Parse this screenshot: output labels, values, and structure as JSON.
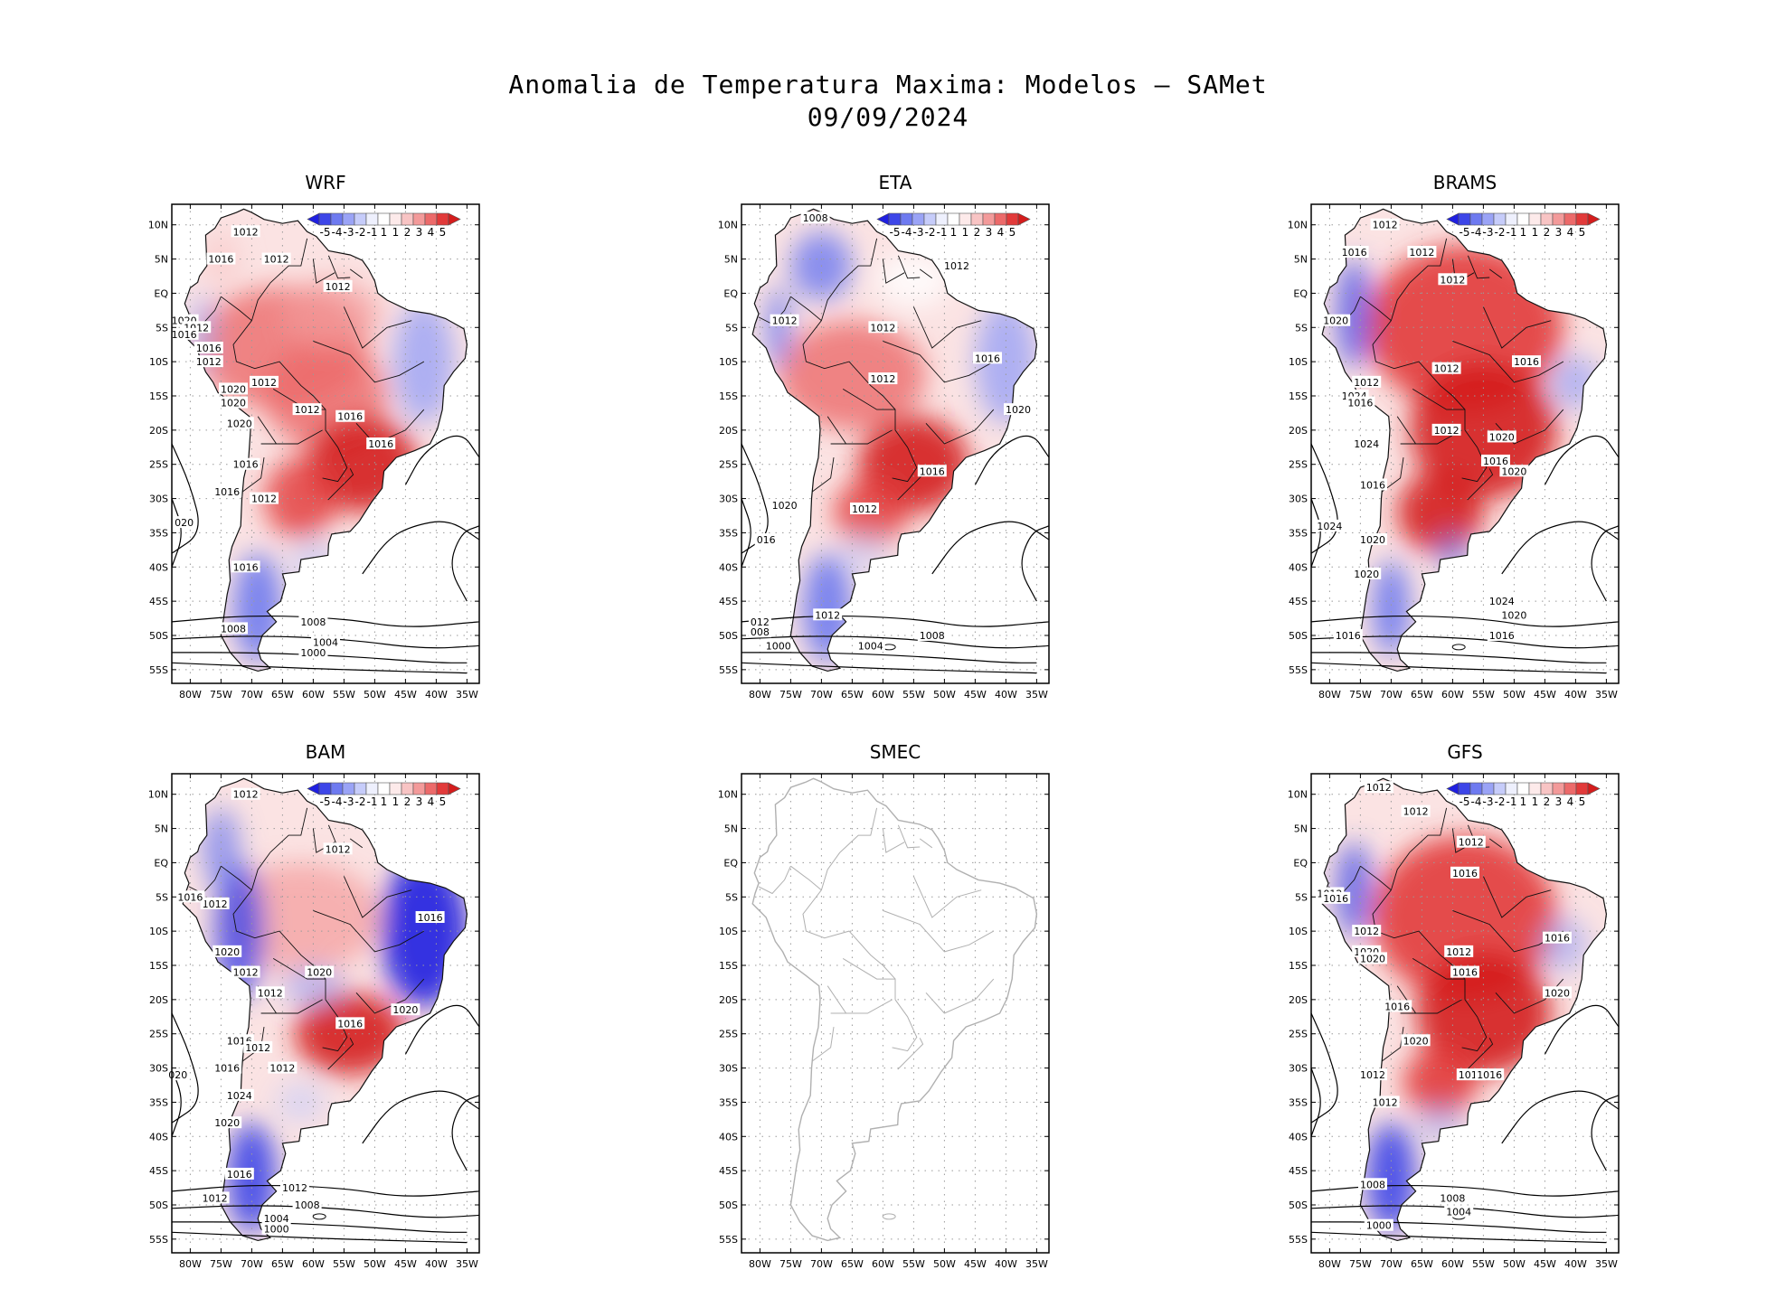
{
  "figure": {
    "title_line1": "Anomalia de Temperatura Maxima: Modelos — SAMet",
    "title_line2": "09/09/2024"
  },
  "axes": {
    "lat_labels": [
      "10N",
      "5N",
      "EQ",
      "5S",
      "10S",
      "15S",
      "20S",
      "25S",
      "30S",
      "35S",
      "40S",
      "45S",
      "50S",
      "55S"
    ],
    "lon_labels": [
      "80W",
      "75W",
      "70W",
      "65W",
      "60W",
      "55W",
      "50W",
      "45W",
      "40W",
      "35W"
    ]
  },
  "colorbar": {
    "labels": [
      "-5",
      "-4",
      "-3",
      "-2",
      "-1",
      "1",
      "1",
      "2",
      "3",
      "4",
      "5"
    ],
    "colors": [
      "#1f1fe0",
      "#3d46e8",
      "#6e7af0",
      "#9aa3f6",
      "#c6ccfa",
      "#eef0fd",
      "#ffffff",
      "#fdeaea",
      "#f8c4c4",
      "#f39a9a",
      "#ec6a6a",
      "#e23a3a",
      "#d41c1c"
    ]
  },
  "chart_data": [
    {
      "type": "heatmap",
      "title": "WRF",
      "tendency": "warm interior, cool south and northeast",
      "contour_labels": [
        "1012",
        "1012",
        "1016",
        "1012",
        "1020",
        "1012",
        "1016",
        "1016",
        "1012",
        "1020",
        "1020",
        "1012",
        "1020",
        "1016",
        "1012",
        "1016",
        "1016",
        "020",
        "1016",
        "1016",
        "1012",
        "1008",
        "1008",
        "1004",
        "1000"
      ]
    },
    {
      "type": "heatmap",
      "title": "ETA",
      "tendency": "warm interior, cool north and northeast",
      "contour_labels": [
        "1008",
        "1012",
        "1012",
        "1016",
        "1012",
        "1012",
        "1020",
        "1016",
        "1012",
        "1020",
        "016",
        "1012",
        "012",
        "008",
        "1008",
        "1004",
        "1000"
      ]
    },
    {
      "type": "heatmap",
      "title": "BRAMS",
      "tendency": "strong warm anomaly over most of the continent",
      "contour_labels": [
        "1012",
        "1016",
        "1012",
        "1012",
        "1020",
        "1016",
        "1012",
        "1012",
        "1024",
        "1016",
        "1024",
        "1012",
        "1020",
        "1016",
        "1020",
        "1016",
        "1024",
        "1020",
        "1020",
        "1024",
        "1020",
        "1016",
        "1016"
      ]
    },
    {
      "type": "heatmap",
      "title": "BAM",
      "tendency": "warm interior, strong cool northeast and south",
      "contour_labels": [
        "1012",
        "1012",
        "1016",
        "1012",
        "1016",
        "1020",
        "1012",
        "1020",
        "1012",
        "1016",
        "1020",
        "1012",
        "1016",
        "1012",
        "020",
        "1016",
        "1024",
        "1020",
        "1016",
        "1012",
        "1012",
        "1008",
        "1004",
        "1000"
      ]
    },
    {
      "type": "heatmap",
      "title": "SMEC",
      "tendency": "no data",
      "contour_labels": []
    },
    {
      "type": "heatmap",
      "title": "GFS",
      "tendency": "strong warm anomaly over most of the continent",
      "contour_labels": [
        "1012",
        "1012",
        "1012",
        "1016",
        "1012",
        "1016",
        "1012",
        "1020",
        "1020",
        "1016",
        "1012",
        "1016",
        "1020",
        "1016",
        "1020",
        "1012",
        "1016",
        "1016",
        "1012",
        "1008",
        "1008",
        "1004",
        "1000"
      ]
    }
  ]
}
